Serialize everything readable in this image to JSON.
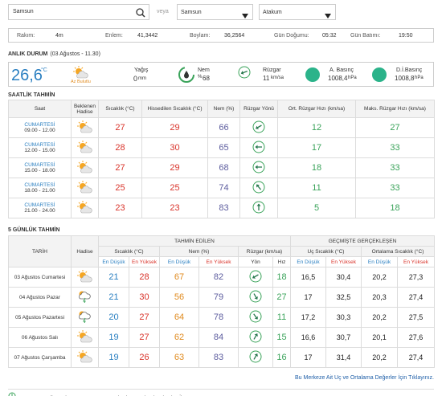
{
  "search": {
    "query": "Samsun",
    "or": "veya",
    "province": "Samsun",
    "district": "Atakum"
  },
  "info": [
    {
      "label": "Rakım:",
      "value": "4m"
    },
    {
      "label": "Enlem:",
      "value": "41,3442"
    },
    {
      "label": "Boylam:",
      "value": "36,2564"
    },
    {
      "label": "Gün Doğumu:",
      "value": "05:32"
    },
    {
      "label": "Gün Batımı:",
      "value": "19:50"
    }
  ],
  "current": {
    "title": "ANLIK DURUM",
    "date": "(03 Ağustos - 11.30)",
    "temp": "26,6",
    "temp_unit": "°C",
    "condition": "Az Bulutlu",
    "rain": {
      "label": "Yağış",
      "value": "0",
      "unit": "mm"
    },
    "humidity": {
      "label": "Nem",
      "unit": "%",
      "value": "68"
    },
    "wind": {
      "label": "Rüzgar",
      "value": "11",
      "unit": "km/sa"
    },
    "pressure": {
      "label": "A. Basınç",
      "value": "1008,4",
      "unit": "hPa"
    },
    "sea_pressure": {
      "label": "D.İ.Basınç",
      "value": "1008,8",
      "unit": "hPa"
    }
  },
  "hourly": {
    "title": "SAATLİK TAHMİN",
    "headers": [
      "Saat",
      "Beklenen Hadise",
      "Sıcaklık (°C)",
      "Hissedilen Sıcaklık (°C)",
      "Nem (%)",
      "Rüzgar Yönü",
      "Ort. Rüzgar Hızı (km/sa)",
      "Maks. Rüzgar Hızı (km/sa)"
    ],
    "rows": [
      {
        "day": "CUMARTESİ",
        "time": "09.00 - 12.00",
        "temp": "27",
        "feels": "29",
        "humidity": "66",
        "wind_avg": "12",
        "wind_max": "27"
      },
      {
        "day": "CUMARTESİ",
        "time": "12.00 - 15.00",
        "temp": "28",
        "feels": "30",
        "humidity": "65",
        "wind_avg": "17",
        "wind_max": "33"
      },
      {
        "day": "CUMARTESİ",
        "time": "15.00 - 18.00",
        "temp": "27",
        "feels": "29",
        "humidity": "68",
        "wind_avg": "18",
        "wind_max": "33"
      },
      {
        "day": "CUMARTESİ",
        "time": "18.00 - 21.00",
        "temp": "25",
        "feels": "25",
        "humidity": "74",
        "wind_avg": "11",
        "wind_max": "33"
      },
      {
        "day": "CUMARTESİ",
        "time": "21.00 - 24.00",
        "temp": "23",
        "feels": "23",
        "humidity": "83",
        "wind_avg": "5",
        "wind_max": "18"
      }
    ]
  },
  "daily": {
    "title": "5 GÜNLÜK TAHMİN",
    "headers": {
      "date": "TARİH",
      "event": "Hadise",
      "forecast": "TAHMİN EDİLEN",
      "past": "GEÇMİŞTE GERÇEKLEŞEN",
      "groups": [
        "Sıcaklık (°C)",
        "Nem (%)",
        "Rüzgar (km/sa)",
        "Uç Sıcaklık (°C)",
        "Ortalama Sıcaklık (°C)"
      ],
      "sub": [
        "En Düşük",
        "En Yüksek",
        "En Düşük",
        "En Yüksek",
        "Yön",
        "Hız",
        "En Düşük",
        "En Yüksek",
        "En Düşük",
        "En Yüksek"
      ]
    },
    "rows": [
      {
        "date": "03 Ağustos Cumartesi",
        "cells": [
          "21",
          "28",
          "67",
          "82",
          "18",
          "16,5",
          "30,4",
          "20,2",
          "27,3"
        ]
      },
      {
        "date": "04 Ağustos Pazar",
        "cells": [
          "21",
          "30",
          "56",
          "79",
          "27",
          "17",
          "32,5",
          "20,3",
          "27,4"
        ]
      },
      {
        "date": "05 Ağustos Pazartesi",
        "cells": [
          "20",
          "27",
          "64",
          "78",
          "11",
          "17,2",
          "30,3",
          "20,2",
          "27,5"
        ]
      },
      {
        "date": "06 Ağustos Salı",
        "cells": [
          "19",
          "27",
          "62",
          "84",
          "15",
          "16,6",
          "30,7",
          "20,1",
          "27,6"
        ]
      },
      {
        "date": "07 Ağustos Çarşamba",
        "cells": [
          "19",
          "26",
          "63",
          "83",
          "16",
          "17",
          "31,4",
          "20,2",
          "27,4"
        ]
      }
    ]
  },
  "link": "Bu Merkeze Ait Uç ve Ortalama Değerler İçin Tıklayınız.",
  "footer": "Güncelleme her gün saat 14:00'e kadar yapılmaktadır. (TSİ)"
}
